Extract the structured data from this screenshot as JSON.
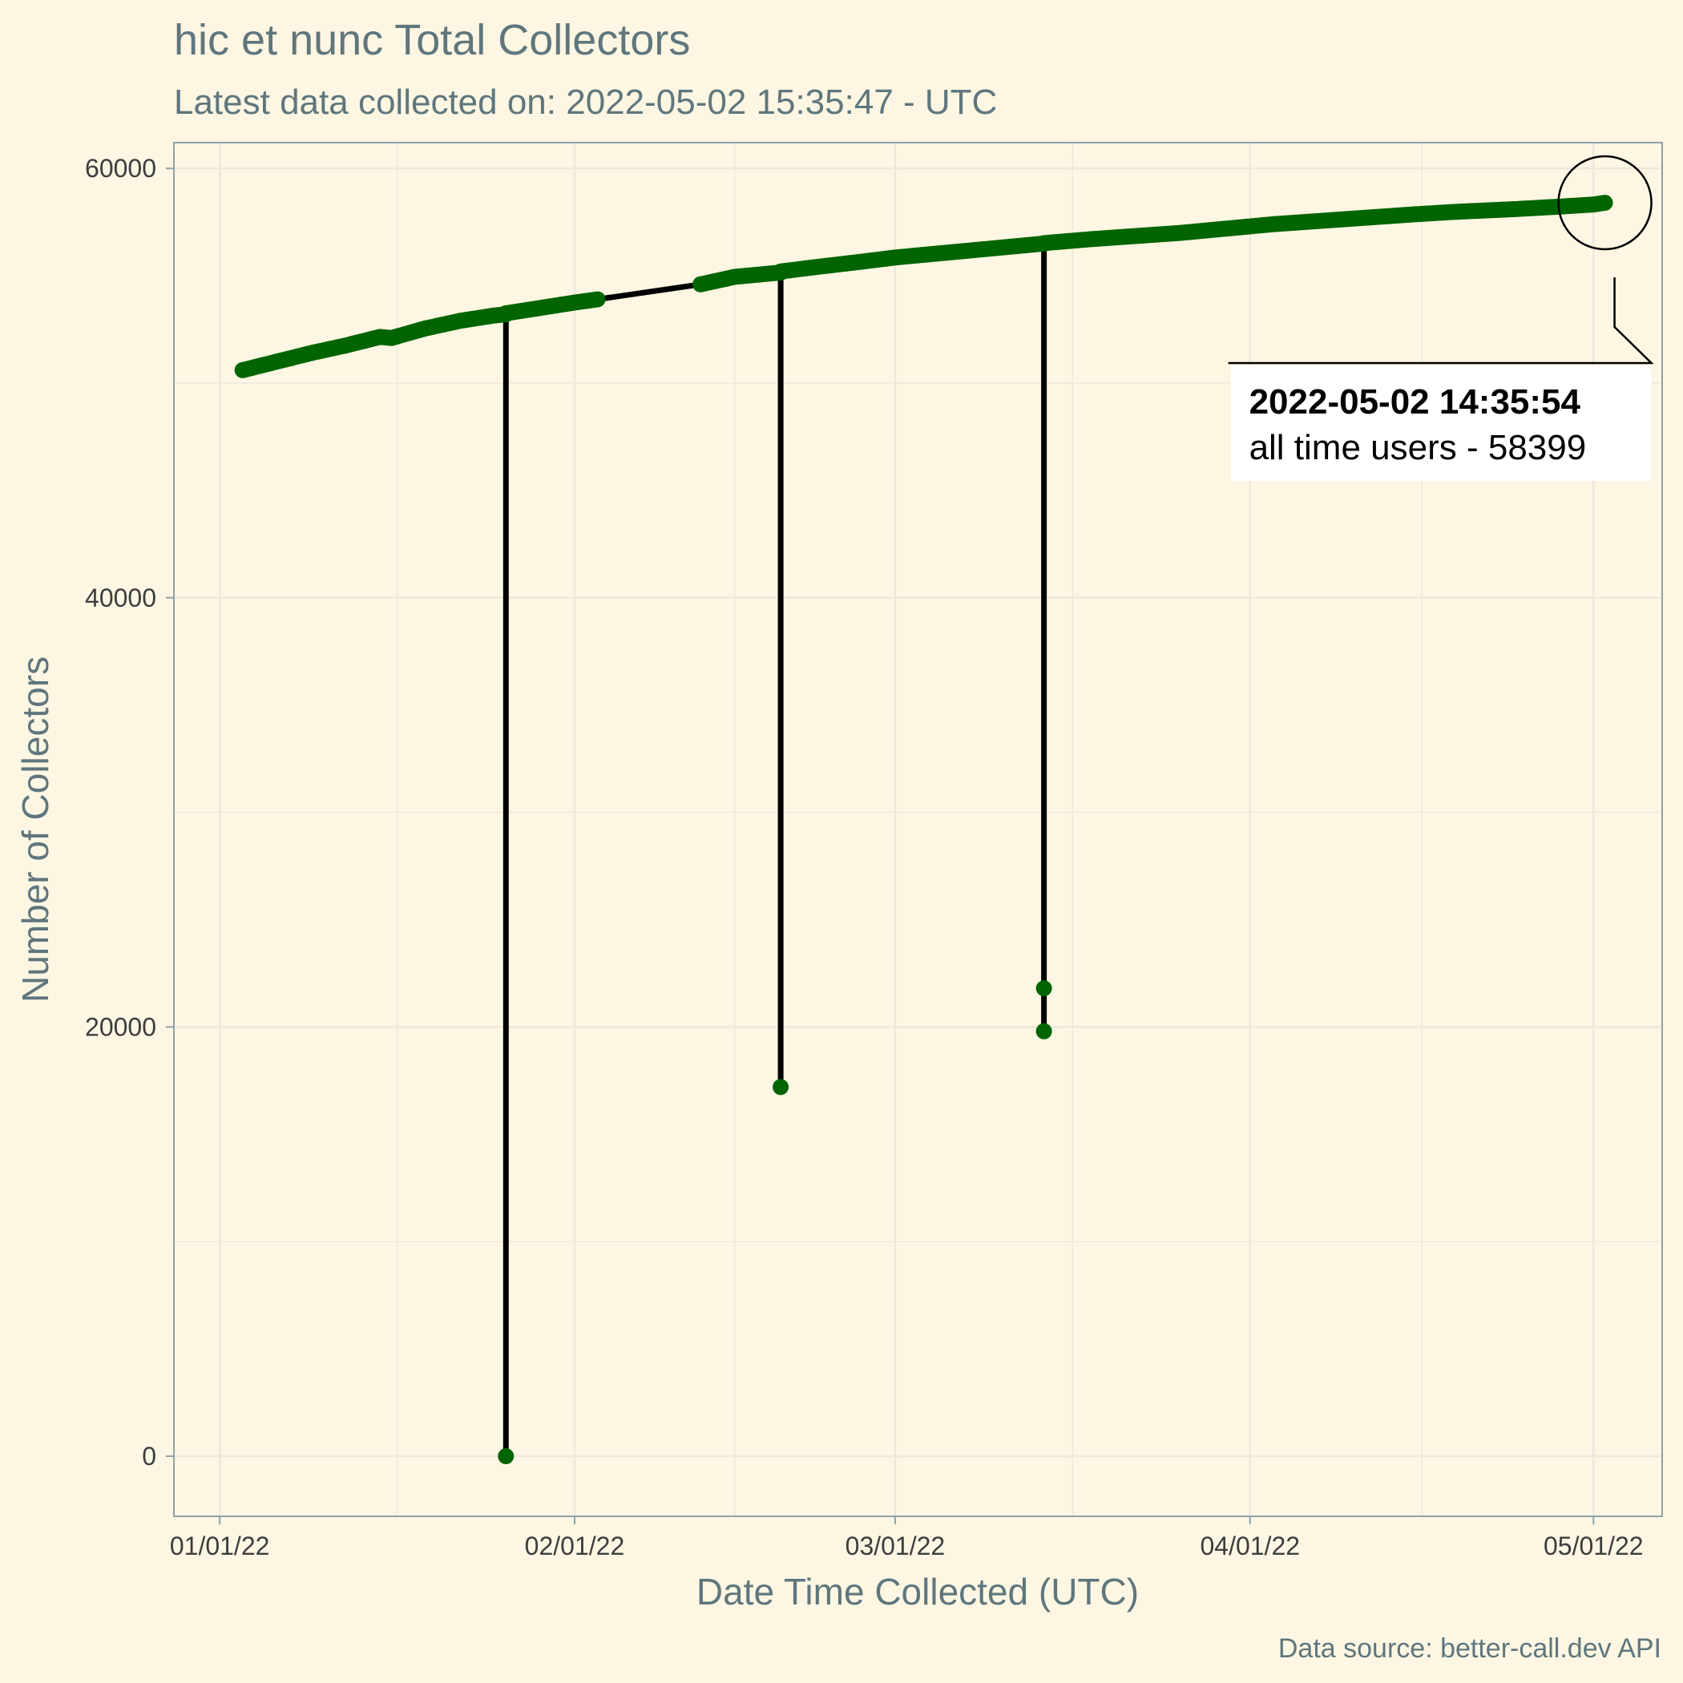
{
  "chart_data": {
    "type": "line",
    "title": "hic et nunc Total Collectors",
    "subtitle": "Latest data collected on: 2022-05-02 15:35:47  - UTC",
    "xlabel": "Date Time Collected (UTC)",
    "ylabel": "Number of Collectors",
    "caption": "Data source: better-call.dev API",
    "x_ticks": [
      {
        "date": "2022-01-01",
        "label": "01/01/22"
      },
      {
        "date": "2022-02-01",
        "label": "02/01/22"
      },
      {
        "date": "2022-03-01",
        "label": "03/01/22"
      },
      {
        "date": "2022-04-01",
        "label": "04/01/22"
      },
      {
        "date": "2022-05-01",
        "label": "05/01/22"
      }
    ],
    "y_ticks": [
      0,
      20000,
      40000,
      60000
    ],
    "xlim": [
      "2021-12-28",
      "2022-05-07"
    ],
    "ylim": [
      -2800,
      61200
    ],
    "grid": true,
    "line_color": "#000000",
    "point_color": "#006400",
    "series": [
      {
        "points": [
          [
            "2022-01-03",
            50600
          ],
          [
            "2022-01-06",
            51000
          ],
          [
            "2022-01-09",
            51400
          ],
          [
            "2022-01-12",
            51750
          ],
          [
            "2022-01-15",
            52150
          ],
          [
            "2022-01-16",
            52100
          ],
          [
            "2022-01-19",
            52550
          ],
          [
            "2022-01-22",
            52900
          ],
          [
            "2022-01-25",
            53150
          ],
          [
            "2022-01-26",
            53200
          ],
          [
            "2022-01-26",
            0
          ],
          [
            "2022-01-26",
            53250
          ],
          [
            "2022-01-29",
            53500
          ],
          [
            "2022-02-01",
            53750
          ],
          [
            "2022-02-03",
            53900
          ],
          [
            "2022-02-12",
            54600
          ],
          [
            "2022-02-15",
            54950
          ],
          [
            "2022-02-19",
            55150
          ],
          [
            "2022-02-19",
            17200
          ],
          [
            "2022-02-19",
            55200
          ],
          [
            "2022-02-22",
            55400
          ],
          [
            "2022-02-26",
            55650
          ],
          [
            "2022-03-01",
            55850
          ],
          [
            "2022-03-05",
            56050
          ],
          [
            "2022-03-09",
            56250
          ],
          [
            "2022-03-13",
            56450
          ],
          [
            "2022-03-14",
            56500
          ],
          [
            "2022-03-14",
            19800
          ],
          [
            "2022-03-14",
            21800
          ],
          [
            "2022-03-14",
            56520
          ],
          [
            "2022-03-18",
            56700
          ],
          [
            "2022-03-22",
            56850
          ],
          [
            "2022-03-26",
            57000
          ],
          [
            "2022-03-30",
            57200
          ],
          [
            "2022-04-03",
            57400
          ],
          [
            "2022-04-07",
            57550
          ],
          [
            "2022-04-11",
            57700
          ],
          [
            "2022-04-15",
            57850
          ],
          [
            "2022-04-19",
            57980
          ],
          [
            "2022-04-24",
            58100
          ],
          [
            "2022-04-28",
            58220
          ],
          [
            "2022-05-01",
            58320
          ],
          [
            "2022-05-02",
            58399
          ]
        ]
      }
    ],
    "annotation": {
      "date": "2022-05-02",
      "value": 58399,
      "title": "2022-05-02 14:35:54",
      "text": "all time users - 58399"
    }
  }
}
